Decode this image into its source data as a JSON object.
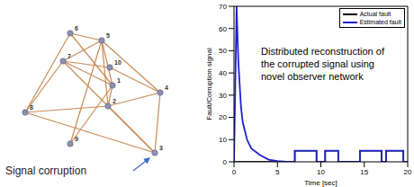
{
  "chart_data": {
    "type": "line",
    "xlabel": "Time [sec]",
    "ylabel": "Fault/Corruption signal",
    "annotation": "Distributed reconstruction of the corrupted signal using novel observer network",
    "x": [
      0,
      0.3,
      0.5,
      0.8,
      1,
      1.5,
      2,
      3,
      4,
      5,
      6,
      7,
      7,
      9.5,
      9.5,
      10.5,
      10.5,
      12,
      12,
      14.5,
      14.5,
      17,
      17,
      17.5,
      17.5,
      19.5,
      19.5,
      20
    ],
    "series": [
      {
        "name": "Actual fault",
        "color": "#000000",
        "values": [
          0,
          0,
          0,
          0,
          0,
          0,
          0,
          0,
          0,
          0,
          0,
          0,
          5,
          5,
          0,
          0,
          5,
          5,
          0,
          0,
          5,
          5,
          0,
          0,
          5,
          5,
          0,
          0
        ]
      },
      {
        "name": "Estimated fault",
        "color": "#1f1fd0",
        "values": [
          0,
          70,
          45,
          25,
          18,
          10,
          6,
          3,
          1,
          0.3,
          0,
          0,
          5,
          5,
          0,
          0,
          5,
          5,
          0,
          0,
          5,
          5,
          0,
          0,
          5,
          5,
          0,
          0
        ]
      }
    ],
    "xlim": [
      0,
      20
    ],
    "xticks": [
      0,
      5,
      10,
      15,
      20
    ],
    "ylim": [
      0,
      70
    ],
    "yticks": [
      0,
      10,
      20,
      30,
      40,
      50,
      60,
      70
    ],
    "legend": "upper right",
    "grid": false
  },
  "diagram": {
    "annotation": "Signal corruption",
    "nodes": [
      {
        "label": "6"
      },
      {
        "label": "5"
      },
      {
        "label": "7"
      },
      {
        "label": "10"
      },
      {
        "label": "1"
      },
      {
        "label": "4"
      },
      {
        "label": "2"
      },
      {
        "label": "8"
      },
      {
        "label": "9"
      },
      {
        "label": "3"
      }
    ],
    "edges": [
      [
        "6",
        "5"
      ],
      [
        "6",
        "1"
      ],
      [
        "5",
        "7"
      ],
      [
        "5",
        "4"
      ],
      [
        "5",
        "2"
      ],
      [
        "5",
        "9"
      ],
      [
        "5",
        "1"
      ],
      [
        "7",
        "10"
      ],
      [
        "7",
        "1"
      ],
      [
        "7",
        "3"
      ],
      [
        "7",
        "8"
      ],
      [
        "8",
        "2"
      ],
      [
        "8",
        "3"
      ],
      [
        "9",
        "1"
      ],
      [
        "4",
        "3"
      ],
      [
        "4",
        "2"
      ],
      [
        "1",
        "2"
      ],
      [
        "2",
        "3"
      ],
      [
        "6",
        "8"
      ],
      [
        "10",
        "4"
      ]
    ]
  }
}
